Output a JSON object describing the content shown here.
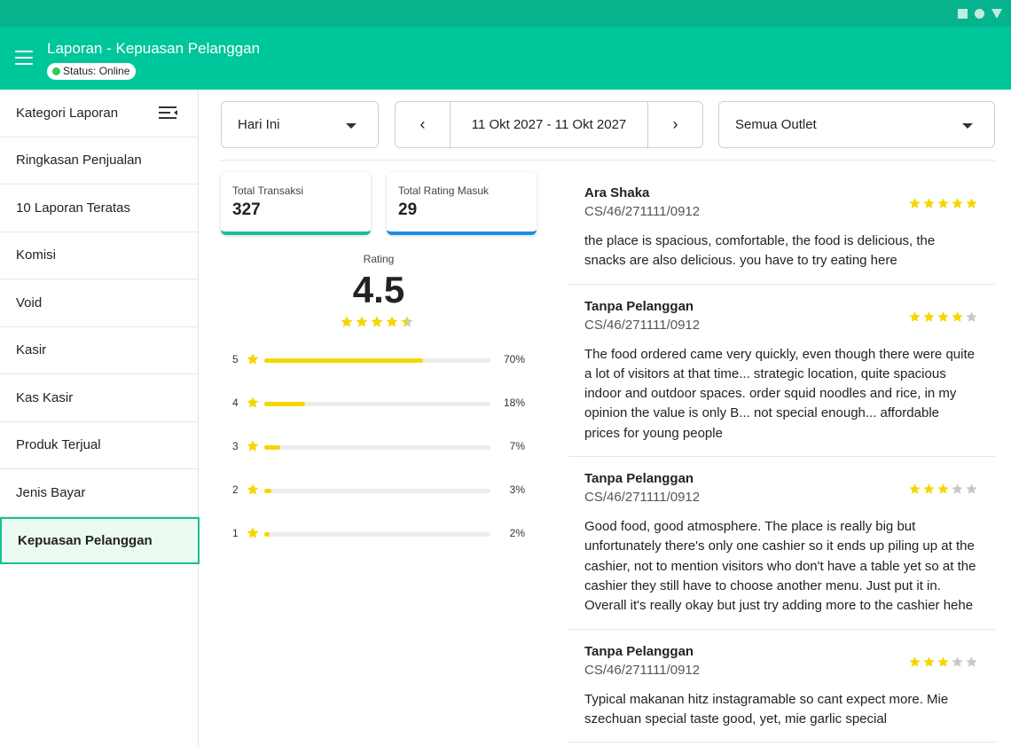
{
  "header": {
    "title": "Laporan - Kepuasan Pelanggan",
    "status": "Status: Online"
  },
  "sidebar": {
    "heading": "Kategori Laporan",
    "items": [
      {
        "label": "Ringkasan Penjualan"
      },
      {
        "label": "10 Laporan Teratas"
      },
      {
        "label": "Komisi"
      },
      {
        "label": "Void"
      },
      {
        "label": "Kasir"
      },
      {
        "label": "Kas Kasir"
      },
      {
        "label": "Produk Terjual"
      },
      {
        "label": "Jenis Bayar"
      },
      {
        "label": "Kepuasan Pelanggan",
        "active": true
      }
    ]
  },
  "filters": {
    "period": "Hari Ini",
    "date_range": "11 Okt 2027 - 11 Okt 2027",
    "outlet": "Semua Outlet"
  },
  "stats": {
    "total_transactions_label": "Total Transaksi",
    "total_transactions_value": "327",
    "total_ratings_label": "Total Rating Masuk",
    "total_ratings_value": "29"
  },
  "rating": {
    "label": "Rating",
    "value": "4.5",
    "stars": 4.5,
    "distribution": [
      {
        "star": "5",
        "percent_label": "70%",
        "fraction": 0.7
      },
      {
        "star": "4",
        "percent_label": "18%",
        "fraction": 0.18
      },
      {
        "star": "3",
        "percent_label": "7%",
        "fraction": 0.07
      },
      {
        "star": "2",
        "percent_label": "3%",
        "fraction": 0.03
      },
      {
        "star": "1",
        "percent_label": "2%",
        "fraction": 0.02
      }
    ]
  },
  "colors": {
    "primary": "#00c69b",
    "status_bar": "#06b38c",
    "star_filled": "#f5d600",
    "star_empty": "#c8c8c8",
    "card2_accent": "#1a8de0"
  },
  "reviews": [
    {
      "name": "Ara Shaka",
      "code": "CS/46/271111/0912",
      "stars": 5,
      "text": "the place is spacious, comfortable, the food is delicious, the snacks are also delicious. you have to try eating here"
    },
    {
      "name": "Tanpa Pelanggan",
      "code": "CS/46/271111/0912",
      "stars": 4,
      "text": "The food ordered came very quickly, even though there were quite a lot of visitors at that time... strategic location, quite spacious indoor and outdoor spaces. order squid noodles and rice, in my opinion the value is only B... not special enough... affordable prices for young people"
    },
    {
      "name": "Tanpa Pelanggan",
      "code": "CS/46/271111/0912",
      "stars": 3,
      "text": "Good food, good atmosphere. The place is really big but unfortunately there's only one cashier so it ends up piling up at the cashier, not to mention visitors who don't have a table yet so at the cashier they still have to choose another menu. Just put it in. Overall it's really okay but just try adding more to the cashier hehe"
    },
    {
      "name": "Tanpa Pelanggan",
      "code": "CS/46/271111/0912",
      "stars": 3,
      "text": "Typical makanan hitz instagramable so cant expect more. Mie szechuan special taste good, yet, mie garlic special"
    }
  ]
}
